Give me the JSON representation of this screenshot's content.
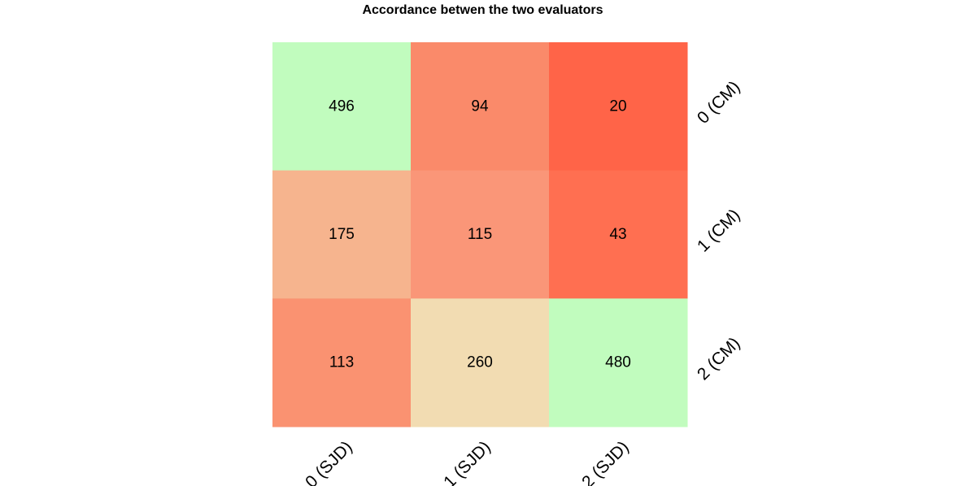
{
  "chart_data": {
    "type": "heatmap",
    "title": "Accordance betwen the two evaluators",
    "x_labels": [
      "0 (SJD)",
      "1 (SJD)",
      "2 (SJD)"
    ],
    "y_labels": [
      "0 (CM)",
      "1 (CM)",
      "2 (CM)"
    ],
    "values": [
      [
        496,
        94,
        20
      ],
      [
        175,
        115,
        43
      ],
      [
        113,
        260,
        480
      ]
    ],
    "cell_colors": [
      [
        "#c1fcbe",
        "#fa8a6a",
        "#ff6448"
      ],
      [
        "#f6b48e",
        "#fa9678",
        "#ff6f51"
      ],
      [
        "#fa9271",
        "#f2dcb2",
        "#c1fcbe"
      ]
    ],
    "legend": "none",
    "grid": false
  }
}
